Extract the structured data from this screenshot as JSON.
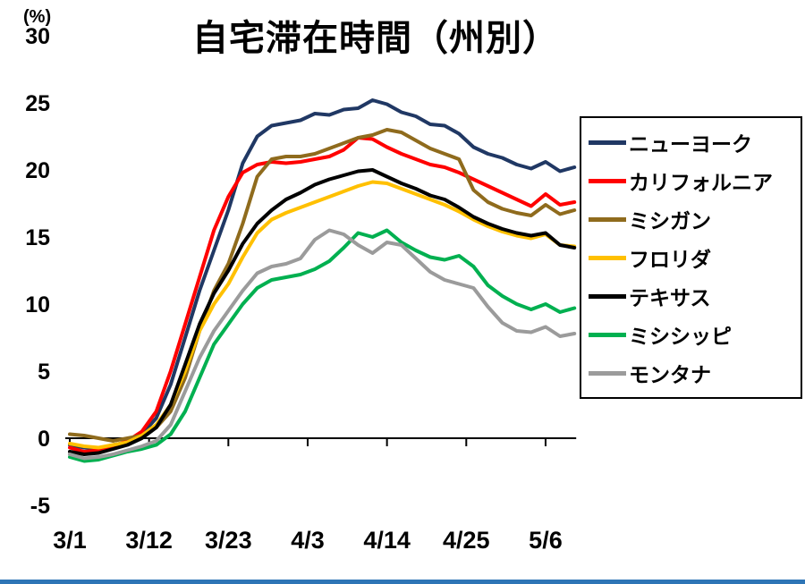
{
  "chart_data": {
    "type": "line",
    "title": "自宅滞在時間（州別）",
    "y_unit": "(%)",
    "ylim": [
      -5,
      30
    ],
    "yticks": [
      30,
      25,
      20,
      15,
      10,
      5,
      0,
      -5
    ],
    "grid": false,
    "legend_position": "right",
    "xticks": [
      {
        "day": 0,
        "label": "3/1"
      },
      {
        "day": 11,
        "label": "3/12"
      },
      {
        "day": 22,
        "label": "3/23"
      },
      {
        "day": 33,
        "label": "4/3"
      },
      {
        "day": 44,
        "label": "4/14"
      },
      {
        "day": 55,
        "label": "4/25"
      },
      {
        "day": 66,
        "label": "5/6"
      }
    ],
    "x_days": [
      0,
      2,
      4,
      6,
      8,
      10,
      12,
      14,
      16,
      18,
      20,
      22,
      24,
      26,
      28,
      30,
      32,
      34,
      36,
      38,
      40,
      42,
      44,
      46,
      48,
      50,
      52,
      54,
      56,
      58,
      60,
      62,
      64,
      66,
      68,
      70
    ],
    "series": [
      {
        "key": "new-york",
        "name": "ニューヨーク",
        "color": "#203864",
        "values": [
          -0.5,
          -0.7,
          -0.8,
          -0.5,
          -0.3,
          0.3,
          1.5,
          4.0,
          7.5,
          11.0,
          14.0,
          17.0,
          20.5,
          22.5,
          23.3,
          23.5,
          23.7,
          24.2,
          24.1,
          24.5,
          24.6,
          25.2,
          24.9,
          24.3,
          24.0,
          23.4,
          23.3,
          22.7,
          21.7,
          21.2,
          20.9,
          20.4,
          20.1,
          20.6,
          19.9,
          20.2
        ]
      },
      {
        "key": "california",
        "name": "カリフォルニア",
        "color": "#ff0000",
        "values": [
          -0.7,
          -1.0,
          -0.9,
          -0.6,
          -0.2,
          0.5,
          2.0,
          5.0,
          8.5,
          12.0,
          15.5,
          18.0,
          19.8,
          20.4,
          20.6,
          20.5,
          20.6,
          20.8,
          21.0,
          21.5,
          22.4,
          22.3,
          21.7,
          21.2,
          20.8,
          20.4,
          20.2,
          19.8,
          19.3,
          18.8,
          18.3,
          17.8,
          17.3,
          18.2,
          17.4,
          17.6
        ]
      },
      {
        "key": "michigan",
        "name": "ミシガン",
        "color": "#8f6b1d",
        "values": [
          0.3,
          0.2,
          0.0,
          -0.2,
          0.0,
          0.2,
          0.8,
          2.0,
          4.5,
          8.0,
          11.0,
          13.0,
          16.0,
          19.5,
          20.8,
          21.0,
          21.0,
          21.2,
          21.6,
          22.0,
          22.4,
          22.6,
          23.0,
          22.8,
          22.2,
          21.6,
          21.2,
          20.8,
          18.5,
          17.6,
          17.1,
          16.8,
          16.6,
          17.4,
          16.7,
          17.0
        ]
      },
      {
        "key": "florida",
        "name": "フロリダ",
        "color": "#ffc000",
        "values": [
          -0.4,
          -0.6,
          -0.7,
          -0.5,
          -0.3,
          0.2,
          1.0,
          2.5,
          5.0,
          8.0,
          10.0,
          11.5,
          13.5,
          15.3,
          16.3,
          16.8,
          17.2,
          17.6,
          18.0,
          18.4,
          18.8,
          19.1,
          19.0,
          18.6,
          18.2,
          17.8,
          17.4,
          16.9,
          16.3,
          15.8,
          15.4,
          15.1,
          14.9,
          15.2,
          14.4,
          14.3
        ]
      },
      {
        "key": "texas",
        "name": "テキサス",
        "color": "#000000",
        "values": [
          -1.0,
          -1.2,
          -1.1,
          -0.8,
          -0.5,
          0.0,
          0.8,
          2.5,
          5.5,
          8.5,
          10.8,
          12.5,
          14.5,
          16.0,
          17.0,
          17.8,
          18.3,
          18.9,
          19.3,
          19.6,
          19.9,
          20.0,
          19.5,
          19.0,
          18.6,
          18.1,
          17.8,
          17.2,
          16.5,
          16.0,
          15.6,
          15.3,
          15.1,
          15.3,
          14.4,
          14.2
        ]
      },
      {
        "key": "mississippi",
        "name": "ミシシッピ",
        "color": "#00b050",
        "values": [
          -1.4,
          -1.7,
          -1.6,
          -1.3,
          -1.0,
          -0.8,
          -0.5,
          0.3,
          2.0,
          4.5,
          7.0,
          8.5,
          10.0,
          11.2,
          11.8,
          12.0,
          12.2,
          12.6,
          13.2,
          14.2,
          15.3,
          15.0,
          15.5,
          14.6,
          14.0,
          13.5,
          13.3,
          13.6,
          12.8,
          11.4,
          10.6,
          10.0,
          9.6,
          10.0,
          9.4,
          9.7
        ]
      },
      {
        "key": "montana",
        "name": "モンタナ",
        "color": "#9b9b9b",
        "values": [
          -1.2,
          -1.5,
          -1.4,
          -1.2,
          -0.9,
          -0.6,
          -0.2,
          1.0,
          3.5,
          6.0,
          8.0,
          9.5,
          11.0,
          12.3,
          12.8,
          13.0,
          13.4,
          14.8,
          15.5,
          15.2,
          14.4,
          13.8,
          14.6,
          14.4,
          13.4,
          12.4,
          11.8,
          11.5,
          11.2,
          9.8,
          8.6,
          8.0,
          7.9,
          8.3,
          7.6,
          7.8
        ]
      }
    ]
  }
}
